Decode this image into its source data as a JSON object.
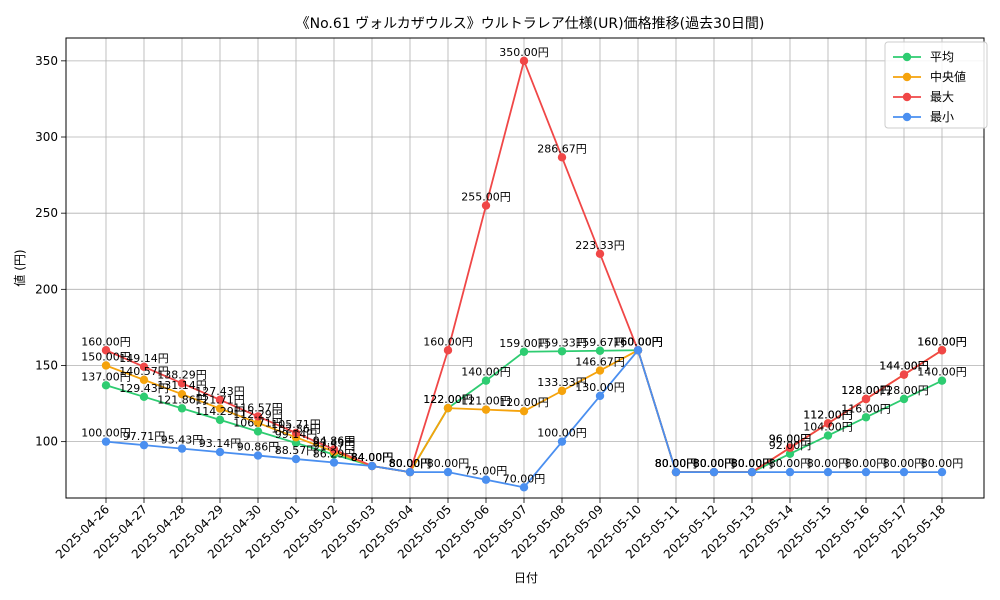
{
  "chart_data": {
    "type": "line",
    "title": "《No.61 ヴォルカザウルス》ウルトラレア仕様(UR)価格推移(過去30日間)",
    "xlabel": "日付",
    "ylabel": "値 (円)",
    "ylim": [
      63,
      365
    ],
    "yticks": [
      100,
      150,
      200,
      250,
      300,
      350
    ],
    "grid": true,
    "legend_position": "top-right",
    "value_suffix": "円",
    "x": [
      "2025-04-26",
      "2025-04-27",
      "2025-04-28",
      "2025-04-29",
      "2025-04-30",
      "2025-05-01",
      "2025-05-02",
      "2025-05-03",
      "2025-05-04",
      "2025-05-05",
      "2025-05-06",
      "2025-05-07",
      "2025-05-08",
      "2025-05-09",
      "2025-05-10",
      "2025-05-11",
      "2025-05-12",
      "2025-05-13",
      "2025-05-14",
      "2025-05-15",
      "2025-05-16",
      "2025-05-17",
      "2025-05-18"
    ],
    "series": [
      {
        "name": "平均",
        "color": "#2ecc71",
        "values": [
          137.0,
          129.43,
          121.86,
          114.29,
          106.71,
          99.14,
          91.57,
          84.0,
          80.0,
          122.0,
          140.0,
          159.0,
          159.33,
          159.67,
          160.0,
          80.0,
          80.0,
          80.0,
          92.0,
          104.0,
          116.0,
          128.0,
          140.0
        ]
      },
      {
        "name": "中央値",
        "color": "#f5a30c",
        "values": [
          150.0,
          140.57,
          131.14,
          121.71,
          112.29,
          102.86,
          93.43,
          84.0,
          80.0,
          122.0,
          121.0,
          120.0,
          133.33,
          146.67,
          160.0,
          80.0,
          80.0,
          80.0,
          96.0,
          112.0,
          128.0,
          144.0,
          160.0
        ]
      },
      {
        "name": "最大",
        "color": "#f04747",
        "values": [
          160.0,
          149.14,
          138.29,
          127.43,
          116.57,
          105.71,
          94.86,
          84.0,
          80.0,
          160.0,
          255.0,
          350.0,
          286.67,
          223.33,
          160.0,
          80.0,
          80.0,
          80.0,
          96.0,
          112.0,
          128.0,
          144.0,
          160.0
        ]
      },
      {
        "name": "最小",
        "color": "#4a8ff0",
        "values": [
          100.0,
          97.71,
          95.43,
          93.14,
          90.86,
          88.57,
          86.29,
          84.0,
          80.0,
          80.0,
          75.0,
          70.0,
          100.0,
          130.0,
          160.0,
          80.0,
          80.0,
          80.0,
          80.0,
          80.0,
          80.0,
          80.0,
          80.0
        ]
      }
    ]
  }
}
